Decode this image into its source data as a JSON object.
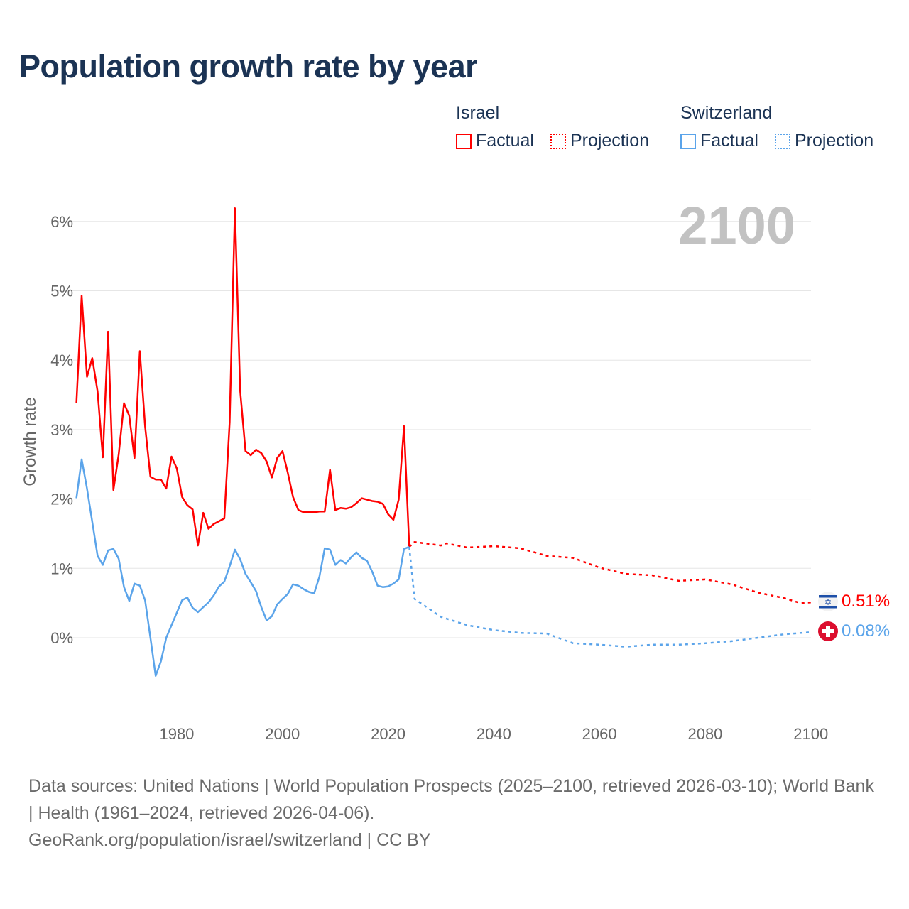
{
  "title": "Population growth rate by year",
  "legend": {
    "groups": [
      {
        "name": "Israel",
        "factual": "Factual",
        "projection": "Projection",
        "color": "#ff0000"
      },
      {
        "name": "Switzerland",
        "factual": "Factual",
        "projection": "Projection",
        "color": "#5ba4ea"
      }
    ]
  },
  "year_overlay": "2100",
  "end_labels": {
    "israel": "0.51%",
    "switzerland": "0.08%"
  },
  "footer": {
    "sources": "Data sources: United Nations | World Population Prospects (2025–2100, retrieved 2026-03-10); World Bank | Health (1961–2024, retrieved 2026-04-06).",
    "link": "GeoRank.org/population/israel/switzerland | CC BY"
  },
  "chart_data": {
    "type": "line",
    "title": "Population growth rate by year",
    "xlabel": "",
    "ylabel": "Growth rate",
    "xlim": [
      1961,
      2100
    ],
    "ylim": [
      -0.9,
      6.3
    ],
    "x_ticks": [
      1980,
      2000,
      2020,
      2040,
      2060,
      2080,
      2100
    ],
    "y_ticks": [
      0,
      1,
      2,
      3,
      4,
      5,
      6
    ],
    "y_tick_labels": [
      "0%",
      "1%",
      "2%",
      "3%",
      "4%",
      "5%",
      "6%"
    ],
    "grid": true,
    "legend_position": "top-right",
    "series": [
      {
        "name": "Israel Factual",
        "color": "#ff0000",
        "style": "solid",
        "x_start": 1961,
        "values": [
          3.38,
          4.93,
          3.76,
          4.03,
          3.55,
          2.6,
          4.41,
          2.13,
          2.64,
          3.38,
          3.2,
          2.59,
          4.13,
          3.05,
          2.32,
          2.28,
          2.28,
          2.15,
          2.61,
          2.44,
          2.03,
          1.91,
          1.85,
          1.33,
          1.8,
          1.57,
          1.64,
          1.68,
          1.72,
          3.11,
          6.19,
          3.56,
          2.69,
          2.63,
          2.71,
          2.66,
          2.54,
          2.31,
          2.59,
          2.69,
          2.38,
          2.03,
          1.84,
          1.81,
          1.81,
          1.81,
          1.82,
          1.82,
          2.42,
          1.84,
          1.87,
          1.86,
          1.88,
          1.94,
          2.01,
          1.99,
          1.97,
          1.96,
          1.93,
          1.78,
          1.7,
          1.99,
          3.05,
          1.31
        ]
      },
      {
        "name": "Israel Projection",
        "color": "#ff0000",
        "style": "dotted",
        "x": [
          2024,
          2025,
          2030,
          2031,
          2035,
          2040,
          2045,
          2050,
          2055,
          2060,
          2065,
          2070,
          2075,
          2080,
          2085,
          2090,
          2095,
          2098,
          2100
        ],
        "values": [
          1.31,
          1.38,
          1.33,
          1.36,
          1.3,
          1.32,
          1.29,
          1.18,
          1.15,
          1.01,
          0.92,
          0.9,
          0.82,
          0.84,
          0.77,
          0.65,
          0.57,
          0.5,
          0.51
        ]
      },
      {
        "name": "Switzerland Factual",
        "color": "#5ba4ea",
        "style": "solid",
        "x_start": 1961,
        "values": [
          2.01,
          2.57,
          2.15,
          1.67,
          1.18,
          1.05,
          1.26,
          1.28,
          1.14,
          0.73,
          0.53,
          0.78,
          0.75,
          0.54,
          0.0,
          -0.55,
          -0.34,
          0.0,
          0.18,
          0.36,
          0.54,
          0.58,
          0.43,
          0.37,
          0.44,
          0.51,
          0.61,
          0.74,
          0.81,
          1.03,
          1.27,
          1.13,
          0.92,
          0.8,
          0.67,
          0.44,
          0.25,
          0.31,
          0.48,
          0.56,
          0.63,
          0.77,
          0.75,
          0.7,
          0.66,
          0.64,
          0.88,
          1.29,
          1.27,
          1.05,
          1.12,
          1.07,
          1.16,
          1.23,
          1.15,
          1.11,
          0.95,
          0.75,
          0.73,
          0.74,
          0.78,
          0.84,
          1.28,
          1.31
        ]
      },
      {
        "name": "Switzerland Projection",
        "color": "#5ba4ea",
        "style": "dotted",
        "x": [
          2024,
          2025,
          2030,
          2035,
          2040,
          2045,
          2050,
          2055,
          2060,
          2065,
          2070,
          2075,
          2080,
          2085,
          2090,
          2095,
          2100
        ],
        "values": [
          1.31,
          0.56,
          0.3,
          0.18,
          0.11,
          0.07,
          0.06,
          -0.08,
          -0.1,
          -0.13,
          -0.1,
          -0.1,
          -0.08,
          -0.05,
          0.0,
          0.05,
          0.08
        ]
      }
    ]
  }
}
